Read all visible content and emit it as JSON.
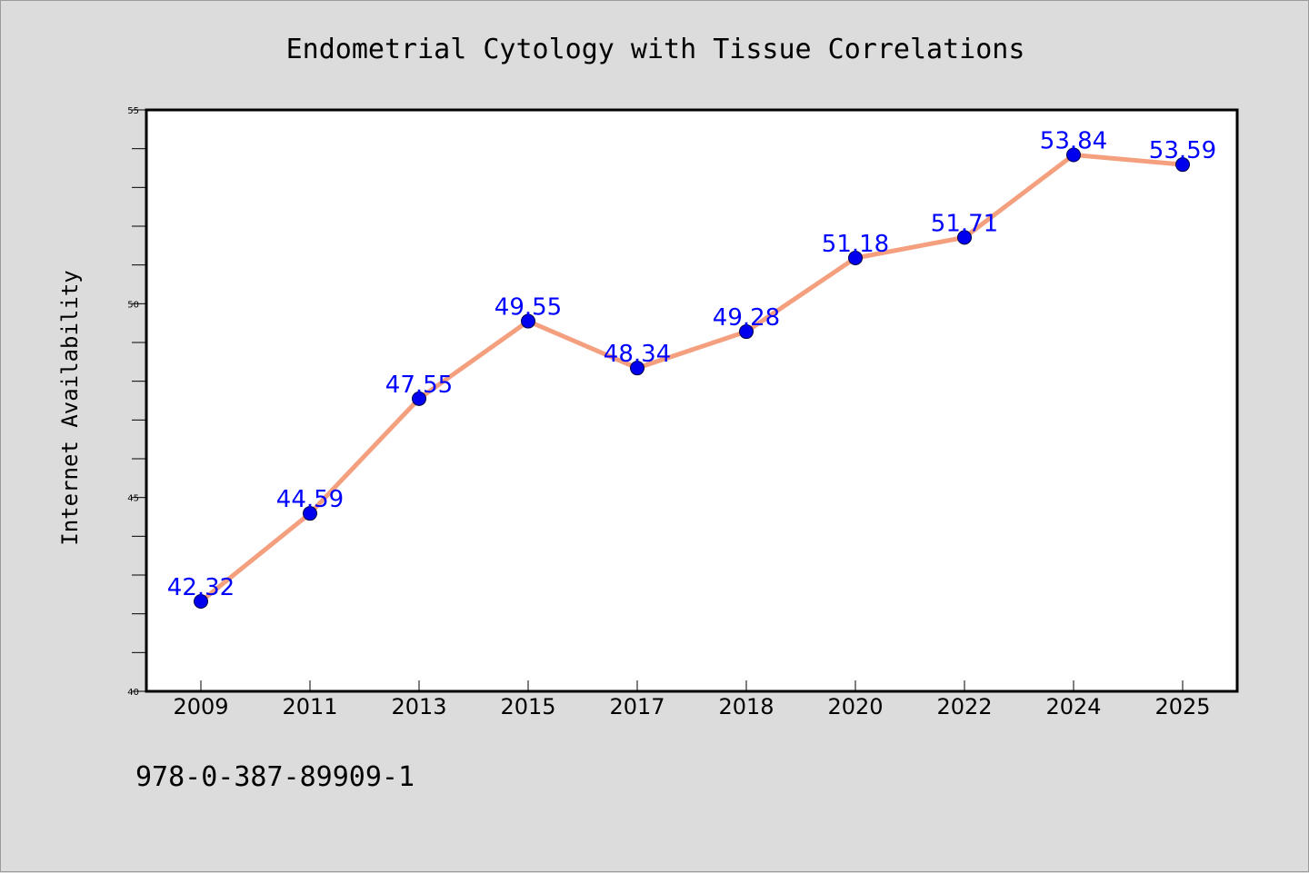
{
  "chart_data": {
    "type": "line",
    "title": "Endometrial Cytology with Tissue Correlations",
    "xlabel": "",
    "ylabel": "Internet Availability",
    "categories": [
      "2009",
      "2011",
      "2013",
      "2015",
      "2017",
      "2018",
      "2020",
      "2022",
      "2024",
      "2025"
    ],
    "series": [
      {
        "values": [
          42.32,
          44.59,
          47.55,
          49.55,
          48.34,
          49.28,
          51.18,
          51.71,
          53.84,
          53.59
        ],
        "data_labels": [
          "42.32",
          "44.59",
          "47.55",
          "49.55",
          "48.34",
          "49.28",
          "51.18",
          "51.71",
          "53.84",
          "53.59"
        ],
        "line_color": "#f4a07f",
        "marker_color": "#0000ee",
        "label_color": "#0000ff"
      }
    ],
    "ylim": [
      40,
      55
    ],
    "yticks": [
      "40",
      "45",
      "50",
      "55"
    ],
    "y_minor_step": 1,
    "grid": false,
    "legend": "none"
  },
  "footer": {
    "isbn": "978-0-387-89909-1"
  },
  "colors": {
    "background": "#dcdcdc",
    "plot_background": "#ffffff",
    "axis": "#000000"
  }
}
